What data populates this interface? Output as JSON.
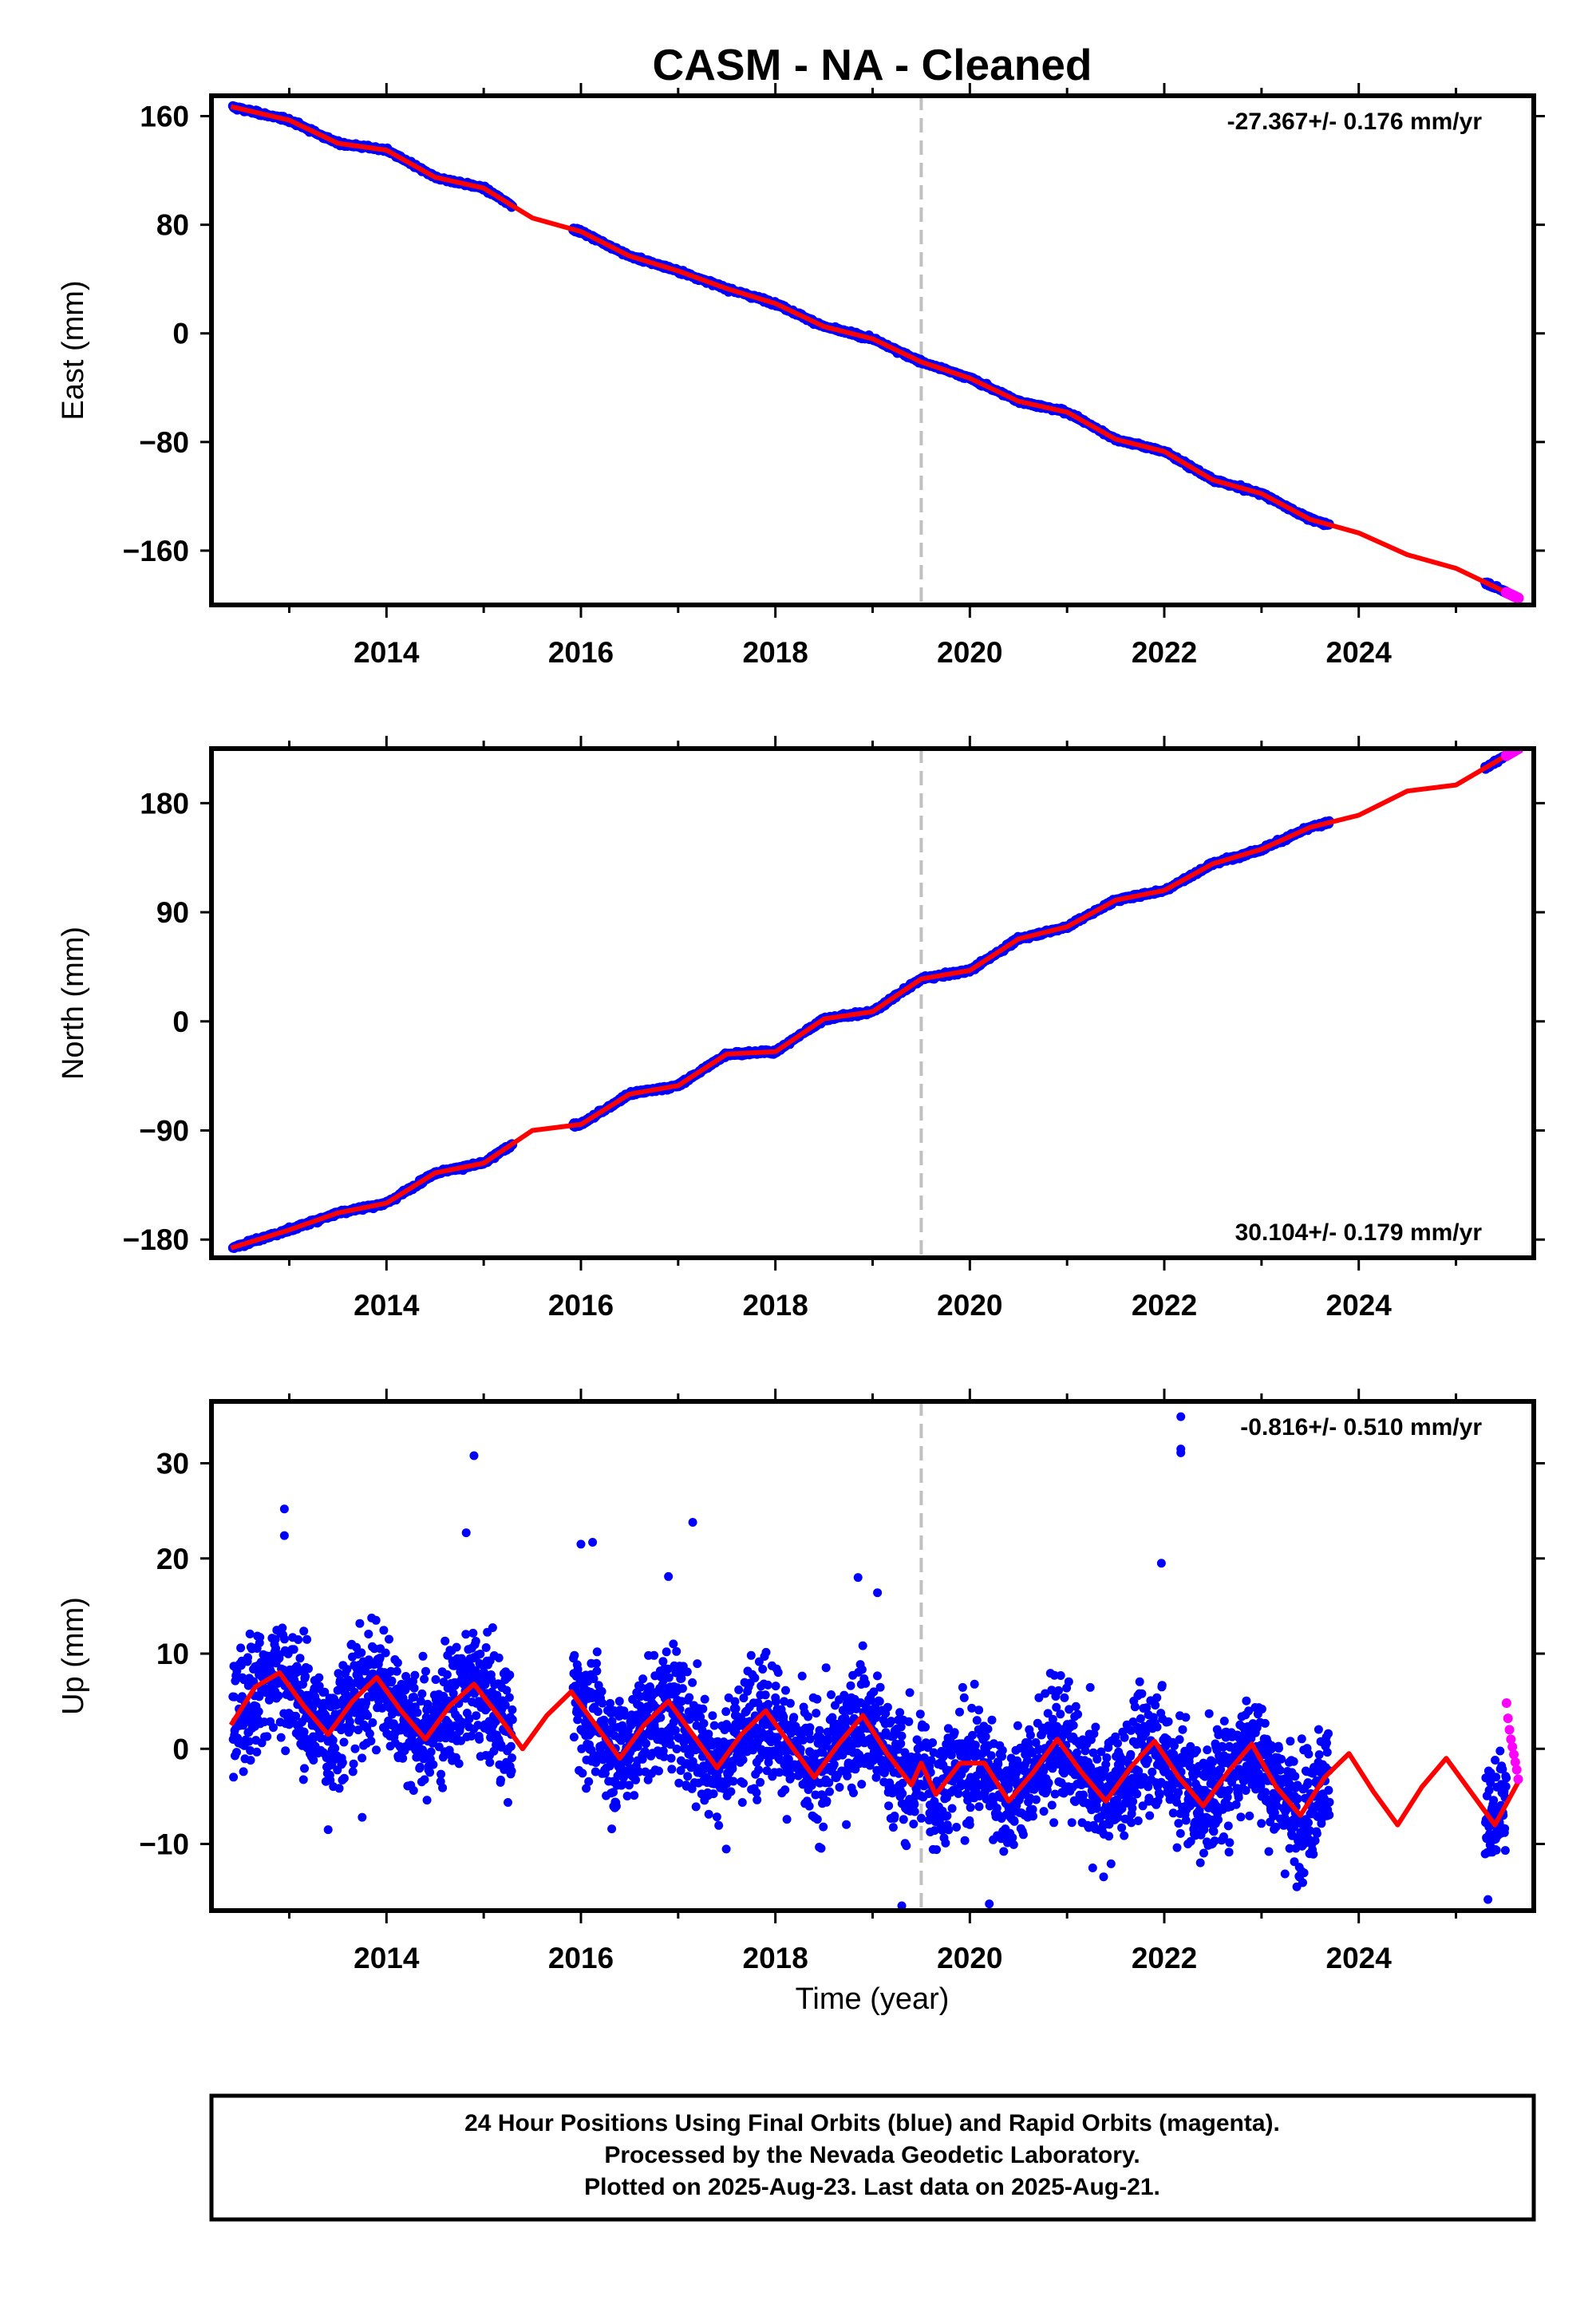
{
  "title": "CASM  - NA - Cleaned",
  "colors": {
    "final": "#0000ff",
    "rapid": "#ff00ff",
    "model": "#ff0000",
    "break_line": "#c0c0c0",
    "frame": "#000000"
  },
  "footer": {
    "line1": "24 Hour Positions Using Final Orbits (blue) and Rapid Orbits (magenta).",
    "line2": "Processed by the Nevada Geodetic Laboratory.",
    "line3": "Plotted on 2025-Aug-23. Last data on 2025-Aug-21."
  },
  "x_axis": {
    "label": "Time (year)",
    "range": [
      2012.2,
      2025.8
    ],
    "ticks": [
      2014,
      2016,
      2018,
      2020,
      2022,
      2024
    ],
    "tick_labels": [
      "2014",
      "2016",
      "2018",
      "2020",
      "2022",
      "2024"
    ]
  },
  "chart_data": [
    {
      "type": "scatter",
      "component": "east",
      "ylabel": "East (mm)",
      "ylim": [
        -200,
        175
      ],
      "y_ticks": [
        160,
        80,
        0,
        -80,
        -160
      ],
      "y_tick_labels": [
        "160",
        "80",
        "0",
        "−80",
        "−160"
      ],
      "rate_text": "-27.367+/- 0.176 mm/yr",
      "rate_position": "top-right",
      "break_year": 2019.5,
      "final_segments": [
        [
          2012.42,
          2015.3
        ],
        [
          2015.92,
          2023.7
        ],
        [
          2025.3,
          2025.52
        ]
      ],
      "rapid_range": [
        2025.52,
        2025.64
      ],
      "model": {
        "x": [
          2012.4,
          2013.0,
          2013.5,
          2014.0,
          2014.5,
          2015.0,
          2015.5,
          2016.0,
          2016.5,
          2017.0,
          2017.5,
          2018.0,
          2018.5,
          2019.0,
          2019.5,
          2020.0,
          2020.5,
          2021.0,
          2021.5,
          2022.0,
          2022.5,
          2023.0,
          2023.5,
          2024.0,
          2024.5,
          2025.0,
          2025.64
        ],
        "y": [
          167,
          157,
          140,
          135,
          115,
          107,
          85,
          75,
          57,
          46,
          33,
          22,
          5,
          -4,
          -21,
          -33,
          -50,
          -58,
          -78,
          -87,
          -108,
          -118,
          -137,
          -147,
          -163,
          -173,
          -195
        ]
      },
      "noise_mm": 2.0
    },
    {
      "type": "scatter",
      "component": "north",
      "ylabel": "North (mm)",
      "ylim": [
        -195,
        225
      ],
      "y_ticks": [
        180,
        90,
        0,
        -90,
        -180
      ],
      "y_tick_labels": [
        "180",
        "90",
        "0",
        "−90",
        "−180"
      ],
      "rate_text": "30.104+/- 0.179 mm/yr",
      "rate_position": "bottom-right",
      "break_year": 2019.5,
      "final_segments": [
        [
          2012.42,
          2015.3
        ],
        [
          2015.92,
          2023.7
        ],
        [
          2025.3,
          2025.52
        ]
      ],
      "rapid_range": [
        2025.52,
        2025.64
      ],
      "model": {
        "x": [
          2012.4,
          2013.0,
          2013.5,
          2014.0,
          2014.5,
          2015.0,
          2015.5,
          2016.0,
          2016.5,
          2017.0,
          2017.5,
          2018.0,
          2018.5,
          2019.0,
          2019.5,
          2020.0,
          2020.5,
          2021.0,
          2021.5,
          2022.0,
          2022.5,
          2023.0,
          2023.5,
          2024.0,
          2024.5,
          2025.0,
          2025.64
        ],
        "y": [
          -187,
          -172,
          -158,
          -150,
          -125,
          -117,
          -90,
          -85,
          -60,
          -53,
          -27,
          -25,
          2,
          8,
          35,
          42,
          68,
          78,
          100,
          108,
          130,
          142,
          160,
          170,
          190,
          195,
          225
        ]
      },
      "noise_mm": 2.5
    },
    {
      "type": "scatter",
      "component": "up",
      "ylabel": "Up (mm)",
      "ylim": [
        -17,
        36.5
      ],
      "y_ticks": [
        30,
        20,
        10,
        0,
        -10
      ],
      "y_tick_labels": [
        "30",
        "20",
        "10",
        "0",
        "−10"
      ],
      "rate_text": "-0.816+/- 0.510 mm/yr",
      "rate_position": "top-right",
      "break_year": 2019.5,
      "final_segments": [
        [
          2012.42,
          2015.3
        ],
        [
          2015.92,
          2023.7
        ],
        [
          2025.3,
          2025.52
        ]
      ],
      "rapid_range": [
        2025.52,
        2025.64
      ],
      "rapid_y": [
        4.8,
        3.2,
        2.0,
        1.0,
        0.2,
        -0.6,
        -1.4,
        -2.2,
        -3.2
      ],
      "model": {
        "x": [
          2012.4,
          2012.65,
          2012.9,
          2013.15,
          2013.4,
          2013.65,
          2013.9,
          2014.15,
          2014.4,
          2014.65,
          2014.9,
          2015.15,
          2015.4,
          2015.65,
          2015.9,
          2016.15,
          2016.4,
          2016.65,
          2016.9,
          2017.15,
          2017.4,
          2017.65,
          2017.9,
          2018.15,
          2018.4,
          2018.65,
          2018.9,
          2019.15,
          2019.4,
          2019.5,
          2019.65,
          2019.9,
          2020.15,
          2020.4,
          2020.65,
          2020.9,
          2021.15,
          2021.4,
          2021.65,
          2021.9,
          2022.15,
          2022.4,
          2022.65,
          2022.9,
          2023.15,
          2023.4,
          2023.65,
          2023.9,
          2024.15,
          2024.4,
          2024.65,
          2024.9,
          2025.15,
          2025.4,
          2025.64
        ],
        "y": [
          2.5,
          6.5,
          8.0,
          4.5,
          1.5,
          5.0,
          7.5,
          4.0,
          1.0,
          4.5,
          6.8,
          3.5,
          0.0,
          3.5,
          6.0,
          2.5,
          -1.0,
          2.5,
          5.0,
          1.5,
          -2.0,
          1.5,
          4.0,
          0.5,
          -3.0,
          0.5,
          3.5,
          -0.5,
          -3.8,
          -1.5,
          -4.8,
          -1.5,
          -1.5,
          -5.5,
          -2.5,
          1.0,
          -2.5,
          -5.5,
          -2.0,
          0.8,
          -3.0,
          -6.0,
          -2.5,
          0.5,
          -4.0,
          -7.0,
          -3.0,
          -0.5,
          -4.5,
          -8.0,
          -4.0,
          -1.0,
          -4.5,
          -8.0,
          -3.5
        ]
      },
      "outliers": [
        {
          "x": 2012.95,
          "y": 25.2
        },
        {
          "x": 2012.95,
          "y": 22.4
        },
        {
          "x": 2014.82,
          "y": 22.7
        },
        {
          "x": 2014.9,
          "y": 30.8
        },
        {
          "x": 2016.0,
          "y": 21.5
        },
        {
          "x": 2016.12,
          "y": 21.7
        },
        {
          "x": 2017.15,
          "y": 23.8
        },
        {
          "x": 2016.9,
          "y": 18.1
        },
        {
          "x": 2018.85,
          "y": 18.0
        },
        {
          "x": 2019.05,
          "y": 16.4
        },
        {
          "x": 2021.97,
          "y": 19.5
        },
        {
          "x": 2022.17,
          "y": 34.9
        },
        {
          "x": 2022.17,
          "y": 31.5
        },
        {
          "x": 2022.17,
          "y": 31.1
        },
        {
          "x": 2019.3,
          "y": -16.5
        },
        {
          "x": 2020.2,
          "y": -16.3
        },
        {
          "x": 2013.4,
          "y": -8.5
        },
        {
          "x": 2013.75,
          "y": -7.2
        }
      ],
      "noise_mm": 4.0
    }
  ]
}
